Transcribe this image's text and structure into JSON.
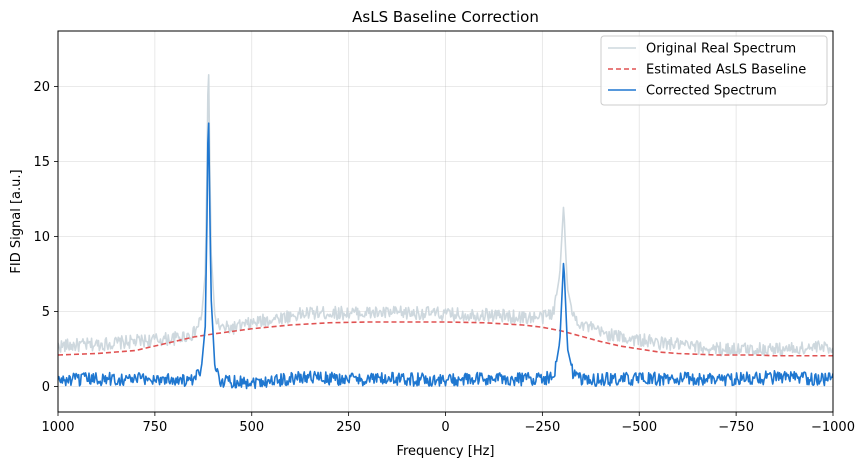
{
  "chart_data": {
    "type": "line",
    "title": "AsLS Baseline Correction",
    "xlabel": "Frequency [Hz]",
    "ylabel": "FID Signal [a.u.]",
    "xlim": [
      1000,
      -1000
    ],
    "ylim": [
      -1.7,
      23.7
    ],
    "x_inverted": true,
    "xticks": [
      1000,
      750,
      500,
      250,
      0,
      -250,
      -500,
      -750,
      -1000
    ],
    "xtick_labels": [
      "1000",
      "750",
      "500",
      "250",
      "0",
      "−250",
      "−500",
      "−750",
      "−1000"
    ],
    "yticks": [
      0,
      5,
      10,
      15,
      20
    ],
    "ytick_labels": [
      "0",
      "5",
      "10",
      "15",
      "20"
    ],
    "grid": true,
    "legend_position": "top-right",
    "series": [
      {
        "name": "Original Real Spectrum",
        "color": "#ced8de",
        "style": "solid",
        "description": "noisy spectrum = corrected spectrum + baseline",
        "x": [
          1000,
          900,
          800,
          700,
          650,
          630,
          620,
          615,
          612,
          610,
          605,
          595,
          580,
          550,
          500,
          450,
          400,
          350,
          300,
          250,
          200,
          150,
          100,
          50,
          0,
          -50,
          -100,
          -150,
          -200,
          -250,
          -280,
          -295,
          -305,
          -310,
          -315,
          -330,
          -350,
          -400,
          -450,
          -500,
          -550,
          -600,
          -650,
          -700,
          -750,
          -800,
          -850,
          -900,
          -950,
          -1000
        ],
        "y": [
          2.7,
          2.8,
          3.0,
          3.2,
          3.5,
          4.5,
          7.5,
          15.0,
          23.0,
          18.0,
          9.0,
          4.6,
          3.9,
          3.9,
          4.2,
          4.5,
          4.7,
          4.9,
          4.9,
          4.9,
          4.9,
          4.9,
          4.9,
          4.9,
          4.8,
          4.8,
          4.8,
          4.7,
          4.6,
          4.6,
          5.0,
          7.5,
          12.2,
          9.0,
          6.5,
          4.7,
          4.2,
          3.6,
          3.3,
          3.1,
          2.9,
          2.8,
          2.6,
          2.5,
          2.5,
          2.5,
          2.5,
          2.5,
          2.6,
          2.6
        ]
      },
      {
        "name": "Estimated AsLS Baseline",
        "color": "#e05252",
        "style": "dashed",
        "x": [
          1000,
          900,
          850,
          800,
          750,
          700,
          650,
          600,
          500,
          400,
          300,
          200,
          100,
          0,
          -100,
          -200,
          -250,
          -300,
          -350,
          -400,
          -450,
          -500,
          -550,
          -600,
          -650,
          -700,
          -750,
          -800,
          -850,
          -900,
          -950,
          -1000
        ],
        "y": [
          2.1,
          2.2,
          2.3,
          2.4,
          2.7,
          3.0,
          3.3,
          3.5,
          3.85,
          4.1,
          4.25,
          4.3,
          4.3,
          4.3,
          4.25,
          4.1,
          3.95,
          3.7,
          3.35,
          3.0,
          2.7,
          2.5,
          2.3,
          2.2,
          2.15,
          2.1,
          2.1,
          2.1,
          2.05,
          2.05,
          2.05,
          2.05
        ]
      },
      {
        "name": "Corrected Spectrum",
        "color": "#1f77d0",
        "style": "solid",
        "description": "noise around 0.4 with two Lorentzian peaks",
        "x": [
          1000,
          900,
          800,
          700,
          650,
          630,
          620,
          615,
          612,
          610,
          605,
          595,
          580,
          500,
          400,
          350,
          300,
          200,
          100,
          0,
          -100,
          -200,
          -280,
          -295,
          -305,
          -310,
          -315,
          -330,
          -350,
          -450,
          -550,
          -650,
          -750,
          -850,
          -950,
          -1000
        ],
        "y": [
          0.4,
          0.5,
          0.5,
          0.5,
          0.3,
          1.2,
          4.0,
          12.0,
          19.6,
          15.0,
          6.0,
          1.2,
          0.4,
          0.3,
          0.5,
          0.7,
          0.5,
          0.5,
          0.5,
          0.4,
          0.5,
          0.5,
          0.6,
          3.0,
          8.5,
          5.5,
          2.5,
          0.8,
          0.4,
          0.5,
          0.5,
          0.5,
          0.5,
          0.6,
          0.5,
          0.5
        ]
      }
    ]
  }
}
